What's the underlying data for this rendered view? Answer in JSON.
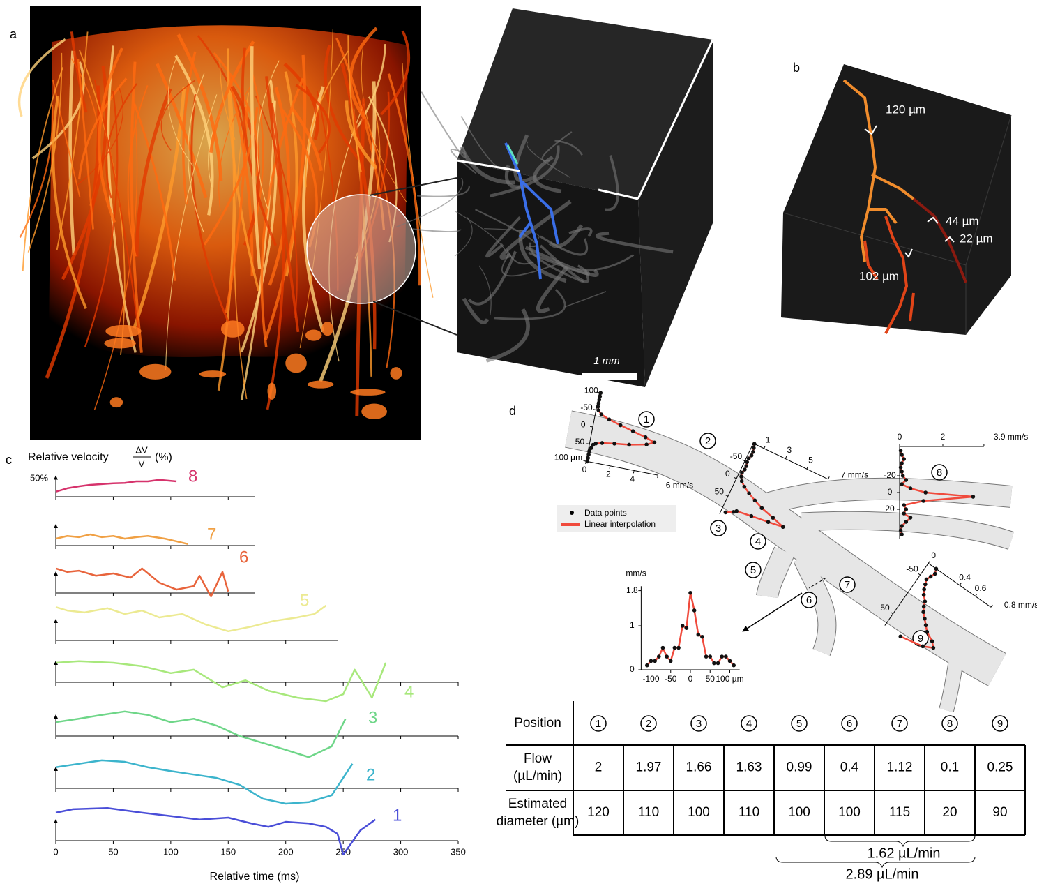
{
  "figure": {
    "panel_labels": [
      "a",
      "b",
      "c",
      "d"
    ],
    "scale_bar": "1 mm",
    "branch_labels": [
      "120 µm",
      "44 µm",
      "22 µm",
      "102 µm"
    ],
    "legend": [
      "Data points",
      "Linear interpolation"
    ],
    "markers": [
      "1",
      "2",
      "3",
      "4",
      "5",
      "6",
      "7",
      "8",
      "9"
    ],
    "table": {
      "header": "Position",
      "columns": [
        "1",
        "2",
        "3",
        "4",
        "5",
        "6",
        "7",
        "8",
        "9"
      ],
      "rows": [
        {
          "label": [
            "Flow",
            "(µL/min)"
          ],
          "values": [
            2,
            1.97,
            1.66,
            1.63,
            0.99,
            0.4,
            1.12,
            0.1,
            0.25
          ]
        },
        {
          "label": [
            "Estimated",
            "diameter (µm)"
          ],
          "values": [
            120,
            110,
            100,
            110,
            100,
            100,
            115,
            20,
            90
          ]
        }
      ]
    },
    "braces": [
      "1.62 µL/min",
      "2.89 µL/min"
    ]
  },
  "chart_data": [
    {
      "type": "line",
      "y_label": {
        "text": "Relative velocity",
        "fraction": [
          "ΔV",
          "V"
        ],
        "unit": "(%)"
      },
      "scale_bar": {
        "value": 50,
        "label": "50%"
      },
      "x_label": "Relative time (ms)",
      "xlim": [
        0,
        350
      ],
      "xticks": [
        0,
        50,
        100,
        150,
        200,
        250,
        300,
        350
      ],
      "series": [
        {
          "name": "8",
          "color": "#d6336c",
          "x": [
            0,
            10,
            20,
            30,
            40,
            50,
            60,
            70,
            80,
            90,
            105
          ],
          "values": [
            13,
            22,
            27,
            31,
            33,
            35,
            36,
            40,
            40,
            44,
            40
          ]
        },
        {
          "name": "7",
          "color": "#f0a044",
          "x": [
            0,
            10,
            20,
            30,
            40,
            50,
            60,
            70,
            80,
            95,
            115
          ],
          "values": [
            18,
            25,
            22,
            29,
            22,
            25,
            18,
            22,
            25,
            18,
            4
          ]
        },
        {
          "name": "6",
          "color": "#e8643c",
          "x": [
            0,
            10,
            20,
            35,
            50,
            65,
            75,
            90,
            105,
            120,
            125,
            135,
            145,
            150
          ],
          "values": [
            64,
            55,
            58,
            45,
            51,
            40,
            64,
            27,
            9,
            18,
            45,
            -9,
            55,
            4
          ]
        },
        {
          "name": "5",
          "color": "#ecea92",
          "x": [
            0,
            10,
            25,
            45,
            60,
            75,
            90,
            110,
            130,
            150,
            170,
            190,
            210,
            225,
            235
          ],
          "values": [
            87,
            78,
            73,
            84,
            69,
            78,
            60,
            69,
            42,
            24,
            36,
            51,
            60,
            69,
            91
          ]
        },
        {
          "name": "4",
          "color": "#a8e87c",
          "x": [
            0,
            20,
            50,
            75,
            100,
            120,
            145,
            165,
            185,
            210,
            235,
            250,
            260,
            275,
            287
          ],
          "values": [
            51,
            55,
            51,
            42,
            24,
            33,
            -13,
            5,
            -22,
            -40,
            -49,
            -31,
            33,
            -40,
            51
          ]
        },
        {
          "name": "3",
          "color": "#6ed688",
          "x": [
            0,
            20,
            40,
            60,
            80,
            100,
            120,
            140,
            160,
            180,
            200,
            220,
            240,
            252
          ],
          "values": [
            36,
            45,
            55,
            64,
            55,
            36,
            45,
            27,
            0,
            -18,
            -36,
            -55,
            -27,
            45
          ]
        },
        {
          "name": "2",
          "color": "#3cb4cc",
          "x": [
            0,
            20,
            40,
            60,
            80,
            100,
            120,
            140,
            160,
            180,
            200,
            220,
            240,
            258
          ],
          "values": [
            55,
            64,
            73,
            69,
            55,
            45,
            36,
            27,
            9,
            -27,
            -40,
            -36,
            -18,
            64
          ]
        },
        {
          "name": "1",
          "color": "#4a4ed8",
          "x": [
            0,
            15,
            45,
            75,
            100,
            125,
            150,
            170,
            185,
            200,
            220,
            235,
            245,
            250,
            265,
            278
          ],
          "values": [
            73,
            82,
            85,
            73,
            64,
            55,
            60,
            45,
            36,
            49,
            45,
            36,
            18,
            -36,
            27,
            55
          ]
        }
      ]
    },
    {
      "type": "profile",
      "color": "#f04a3c",
      "xlim": [
        -100,
        100
      ],
      "xticks": [
        -100,
        -50,
        0,
        50,
        {
          "value": 100,
          "label": "100 µm"
        }
      ],
      "ylim": [
        0,
        6
      ],
      "yticks": [
        0,
        2,
        4,
        {
          "value": 6,
          "label": "6 mm/s"
        }
      ],
      "x": [
        -100,
        -90,
        -80,
        -70,
        -60,
        -50,
        -40,
        -30,
        -20,
        -10,
        0,
        10,
        20,
        30,
        35,
        40,
        45,
        50,
        60,
        70,
        80,
        90,
        100
      ],
      "values": [
        0.1,
        0.1,
        0.1,
        0.1,
        0.1,
        0.2,
        0.5,
        1.2,
        2.2,
        3.3,
        4.4,
        5.2,
        4.6,
        3.2,
        2,
        1,
        0.5,
        0.3,
        0.2,
        0.1,
        0.1,
        0.1,
        0.1
      ]
    },
    {
      "type": "profile",
      "color": "#f04a3c",
      "xlim": [
        -100,
        100
      ],
      "xticks": [
        -50,
        0,
        50
      ],
      "ylim": [
        0,
        7
      ],
      "yticks": [
        1,
        3,
        5,
        {
          "value": 7,
          "label": "7 mm/s"
        }
      ],
      "x": [
        -100,
        -90,
        -80,
        -70,
        -60,
        -50,
        -40,
        -30,
        -20,
        -10,
        0,
        10,
        20,
        30,
        40,
        50,
        60,
        65,
        70,
        75,
        80,
        90
      ],
      "values": [
        0.1,
        0.2,
        0.3,
        0.3,
        0.2,
        0.2,
        0.3,
        0.3,
        0.2,
        0.3,
        0.5,
        0.9,
        1.5,
        2.2,
        3,
        4.2,
        5.3,
        4,
        2.5,
        1.2,
        1,
        0.4
      ]
    },
    {
      "type": "profile",
      "color": "#f04a3c",
      "xlim": [
        -55,
        55
      ],
      "xticks": [
        -20,
        0,
        20
      ],
      "ylim": [
        0,
        3.9
      ],
      "yticks": [
        0,
        2,
        {
          "value": 3.9,
          "label": "3.9 mm/s"
        }
      ],
      "x": [
        -50,
        -45,
        -40,
        -35,
        -30,
        -25,
        -20,
        -15,
        -10,
        -5,
        0,
        5,
        10,
        15,
        20,
        25,
        30,
        35,
        40,
        45,
        50
      ],
      "values": [
        0.05,
        0.1,
        0.2,
        0.1,
        0.05,
        0.1,
        0.15,
        0.3,
        0.1,
        0.5,
        1.2,
        3.4,
        1.1,
        0.2,
        0.3,
        0.2,
        0.5,
        0.3,
        0.1,
        0.05,
        0.1
      ]
    },
    {
      "type": "profile",
      "color": "#f04a3c",
      "xlim": [
        -80,
        80
      ],
      "xticks": [
        -50,
        50
      ],
      "ylim": [
        0,
        0.8
      ],
      "yticks": [
        0,
        0.4,
        0.6,
        {
          "value": 0.8,
          "label": "0.8 mm/s"
        }
      ],
      "x": [
        -80,
        -70,
        -60,
        -50,
        -40,
        -30,
        -20,
        -10,
        0,
        10,
        20,
        30,
        40,
        50,
        60,
        70,
        80
      ],
      "values": [
        0.1,
        0.12,
        0.1,
        0.08,
        0.1,
        0.12,
        0.15,
        0.2,
        0.22,
        0.25,
        0.3,
        0.35,
        0.4,
        0.5,
        0.55,
        0.45,
        0.2
      ]
    },
    {
      "type": "profile",
      "color": "#f04a3c",
      "y_label": "mm/s",
      "xlim": [
        -125,
        125
      ],
      "xticks": [
        -100,
        -50,
        0,
        50,
        {
          "value": 100,
          "label": "100 µm"
        }
      ],
      "ylim": [
        0,
        1.9
      ],
      "yticks": [
        0,
        1,
        1.8
      ],
      "x": [
        -110,
        -100,
        -90,
        -80,
        -70,
        -60,
        -50,
        -40,
        -30,
        -20,
        -10,
        0,
        10,
        20,
        30,
        40,
        50,
        60,
        70,
        80,
        90,
        100,
        110
      ],
      "values": [
        0.1,
        0.2,
        0.2,
        0.3,
        0.5,
        0.3,
        0.2,
        0.5,
        0.5,
        1,
        0.95,
        1.75,
        1.35,
        0.8,
        0.75,
        0.3,
        0.3,
        0.15,
        0.15,
        0.3,
        0.3,
        0.2,
        0.1
      ]
    }
  ]
}
